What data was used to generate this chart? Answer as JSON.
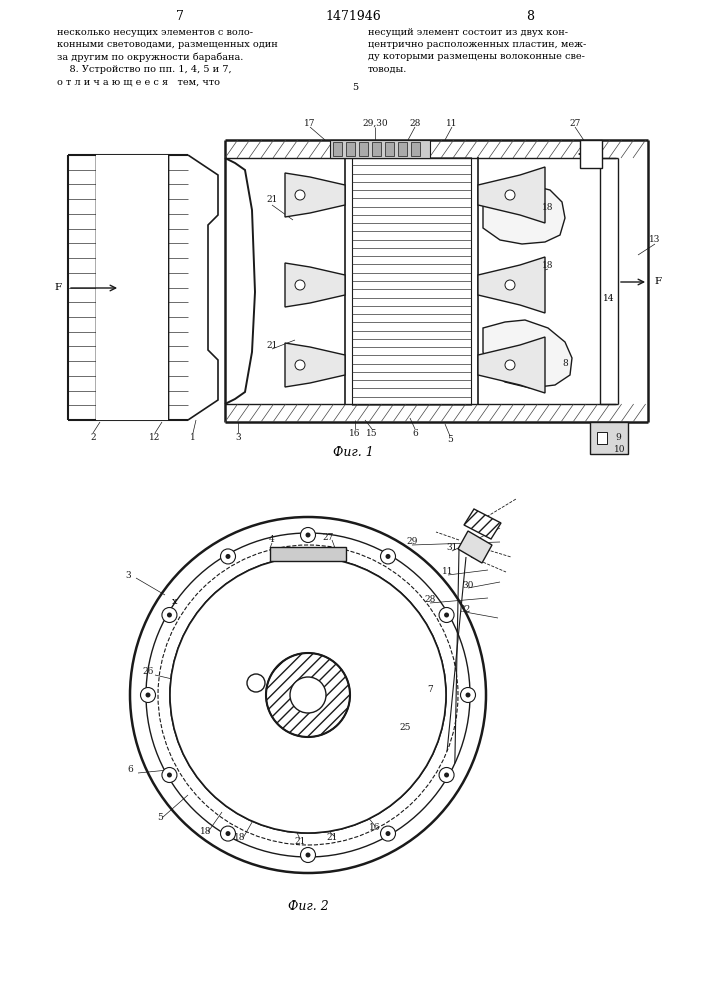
{
  "bg_color": "#ffffff",
  "line_color": "#1a1a1a",
  "page_left": "7",
  "page_center": "1471946",
  "page_right": "8",
  "text_left": "несколько несущих элементов с воло-\nконными световодами, размещенных один\nза другим по окружности барабана.\n    8. Устройство по пп. 1, 4, 5 и 7,\nо т л и ч а ю щ е е с я   тем, что",
  "text_right": "несущий элемент состоит из двух кон-\nцентрично расположенных пластин, меж-\nду которыми размещены волоконные све-\nтоводы.",
  "fig1_caption": "Фиг. 1",
  "fig2_caption": "Фиг. 2",
  "col_number": "5"
}
